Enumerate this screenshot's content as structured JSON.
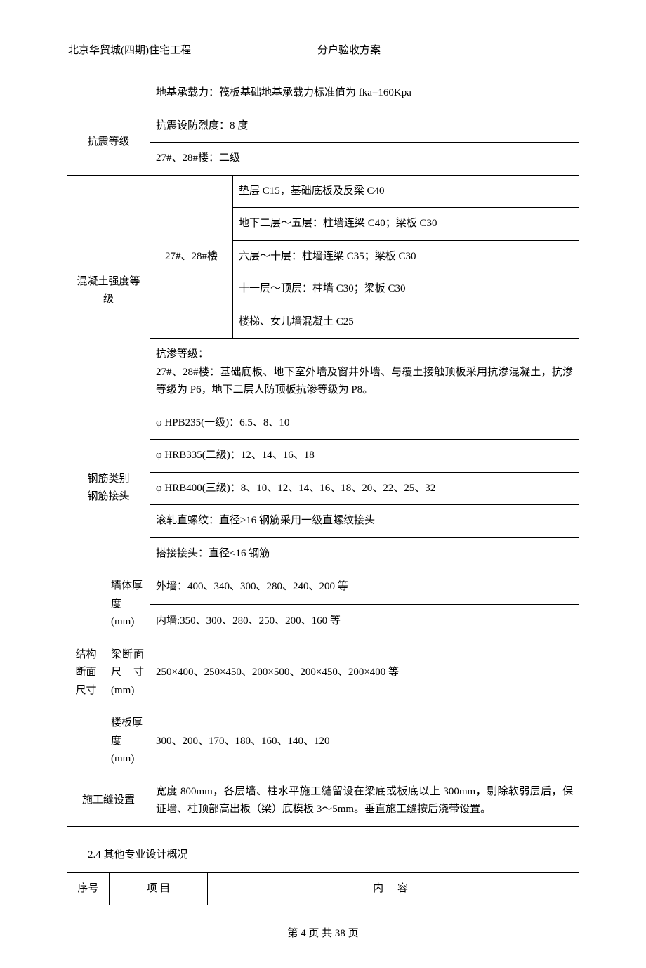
{
  "header": {
    "left": "北京华贸城(四期)住宅工程",
    "right": "分户验收方案"
  },
  "table1": {
    "r1": {
      "cell": "地基承载力：筏板基础地基承载力标准值为 fka=160Kpa"
    },
    "r2": {
      "label": "抗震等级",
      "c1": "抗震设防烈度：8 度",
      "c2": "27#、28#楼：二级"
    },
    "r3": {
      "label": "混凝土强度等级",
      "sub": "27#、28#楼",
      "c1": "垫层 C15，基础底板及反梁 C40",
      "c2": "地下二层～五层：柱墙连梁 C40；梁板 C30",
      "c3": "六层～十层：柱墙连梁 C35；梁板 C30",
      "c4": "十一层～顶层：柱墙 C30；梁板 C30",
      "c5": "楼梯、女儿墙混凝土 C25",
      "c6": "抗渗等级：\n27#、28#楼：基础底板、地下室外墙及窗井外墙、与覆土接触顶板采用抗渗混凝土，抗渗等级为 P6，地下二层人防顶板抗渗等级为 P8。"
    },
    "r4": {
      "label": "钢筋类别\n钢筋接头",
      "c1": "φ HPB235(一级)：6.5、8、10",
      "c2": "φ HRB335(二级)：12、14、16、18",
      "c3": "φ HRB400(三级)：8、10、12、14、16、18、20、22、25、32",
      "c4": "滚轧直螺纹：直径≥16 钢筋采用一级直螺纹接头",
      "c5": "搭接接头：直径<16 钢筋"
    },
    "r5": {
      "label": "结构断面尺寸",
      "s1": "墙体厚度(mm)",
      "s1c1": "外墙：400、340、300、280、240、200 等",
      "s1c2": "内墙:350、300、280、250、200、160 等",
      "s2": "梁断面尺 寸(mm)",
      "s2c": "250×400、250×450、200×500、200×450、200×400 等",
      "s3": "楼板厚度(mm)",
      "s3c": "300、200、170、180、160、140、120"
    },
    "r6": {
      "label": "施工缝设置",
      "c": "宽度 800mm，各层墙、柱水平施工缝留设在梁底或板底以上 300mm，剔除软弱层后，保证墙、柱顶部高出板（梁）底模板 3～5mm。垂直施工缝按后浇带设置。"
    }
  },
  "section_heading": "2.4 其他专业设计概况",
  "table2": {
    "h1": "序号",
    "h2": "项  目",
    "h3": "内    容"
  },
  "footer": "第 4 页  共 38 页"
}
